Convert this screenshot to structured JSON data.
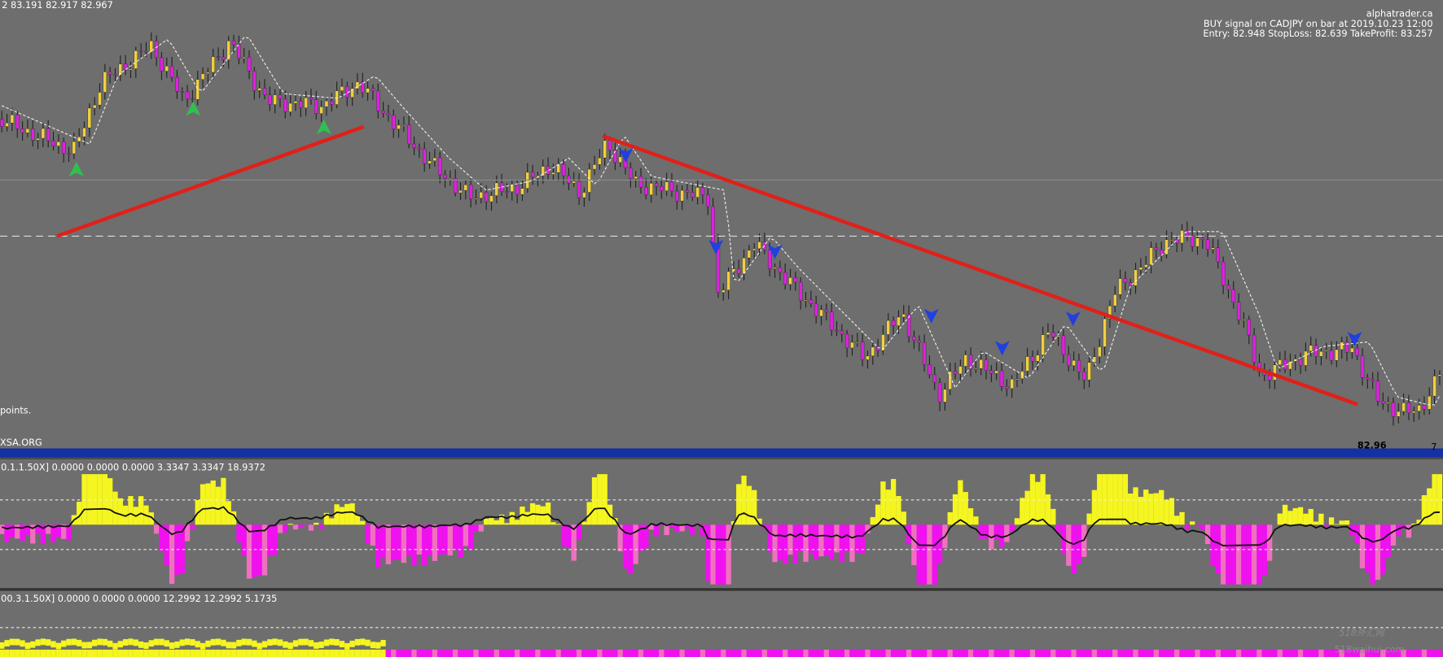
{
  "header": {
    "ohlc": "2 83.191 82.917 82.967",
    "site": "alphatrader.ca",
    "signal": "BUY signal on CADJPY on bar at 2019.10.23 12:00",
    "levels": "Entry: 82.948 StopLoss: 82.639 TakeProfit: 83.257"
  },
  "main": {
    "note": "points.",
    "source": "XSA.ORG",
    "price": "82.96",
    "price_digit": "7"
  },
  "indicators": [
    {
      "label": "0.1.1.50X] 0.0000 0.0000 0.0000 3.3347 3.3347 18.9372"
    },
    {
      "label": "00.3.1.50X] 0.0000 0.0000 0.0000 12.2992 12.2992 5.1735"
    }
  ],
  "watermark": {
    "name": "518外汇网",
    "url": "518waihui.com"
  }
}
